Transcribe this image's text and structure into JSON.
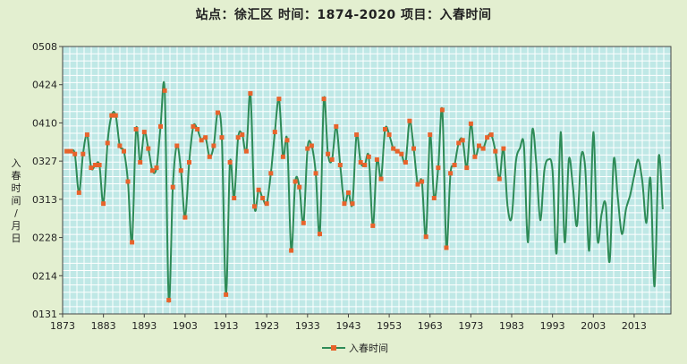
{
  "chart_data": {
    "type": "line",
    "title": "站点：徐汇区   时间：1874-2020      项目：入春时间",
    "ylabel": "入春时间 / 月日",
    "xlabel": "",
    "x_ticks": [
      "1873",
      "1883",
      "1893",
      "1903",
      "1913",
      "1923",
      "1933",
      "1943",
      "1953",
      "1963",
      "1973",
      "1983",
      "1993",
      "2003",
      "2013"
    ],
    "y_ticks": [
      "0131",
      "0214",
      "0228",
      "0313",
      "0327",
      "0410",
      "0424",
      "0508"
    ],
    "xlim": [
      1873,
      2022
    ],
    "ylim": [
      0,
      97
    ],
    "y_axis_note": "y = days after Jan 31",
    "grid": true,
    "legend": "bottom-center",
    "series": [
      {
        "name": "入春时间",
        "color": "#2e8b57",
        "marker_color": "#e8632b",
        "markers_until_year": 1981,
        "x": [
          1874,
          1875,
          1876,
          1877,
          1878,
          1879,
          1880,
          1881,
          1882,
          1883,
          1884,
          1885,
          1886,
          1887,
          1888,
          1889,
          1890,
          1891,
          1892,
          1893,
          1894,
          1895,
          1896,
          1897,
          1898,
          1899,
          1900,
          1901,
          1902,
          1903,
          1904,
          1905,
          1906,
          1907,
          1908,
          1909,
          1910,
          1911,
          1912,
          1913,
          1914,
          1915,
          1916,
          1917,
          1918,
          1919,
          1920,
          1921,
          1922,
          1923,
          1924,
          1925,
          1926,
          1927,
          1928,
          1929,
          1930,
          1931,
          1932,
          1933,
          1934,
          1935,
          1936,
          1937,
          1938,
          1939,
          1940,
          1941,
          1942,
          1943,
          1944,
          1945,
          1946,
          1947,
          1948,
          1949,
          1950,
          1951,
          1952,
          1953,
          1954,
          1955,
          1956,
          1957,
          1958,
          1959,
          1960,
          1961,
          1962,
          1963,
          1964,
          1965,
          1966,
          1967,
          1968,
          1969,
          1970,
          1971,
          1972,
          1973,
          1974,
          1975,
          1976,
          1977,
          1978,
          1979,
          1980,
          1981,
          1982,
          1983,
          1984,
          1985,
          1986,
          1987,
          1988,
          1989,
          1990,
          1991,
          1992,
          1993,
          1994,
          1995,
          1996,
          1997,
          1998,
          1999,
          2000,
          2001,
          2002,
          2003,
          2004,
          2005,
          2006,
          2007,
          2008,
          2009,
          2010,
          2011,
          2012,
          2013,
          2014,
          2015,
          2016,
          2017,
          2018,
          2019,
          2020
        ],
        "values": [
          59,
          59,
          58,
          44,
          58,
          65,
          53,
          54,
          54,
          40,
          62,
          72,
          72,
          61,
          59,
          48,
          26,
          67,
          55,
          66,
          60,
          52,
          53,
          68,
          81,
          5,
          46,
          61,
          52,
          35,
          55,
          68,
          67,
          63,
          64,
          57,
          61,
          73,
          64,
          7,
          55,
          42,
          64,
          65,
          59,
          80,
          39,
          45,
          42,
          40,
          51,
          66,
          78,
          57,
          63,
          23,
          48,
          46,
          33,
          60,
          61,
          51,
          29,
          78,
          58,
          56,
          68,
          54,
          40,
          44,
          40,
          65,
          55,
          54,
          57,
          32,
          56,
          49,
          67,
          65,
          60,
          59,
          58,
          55,
          70,
          60,
          47,
          48,
          28,
          65,
          42,
          53,
          74,
          24,
          51,
          54,
          62,
          63,
          53,
          69,
          57,
          61,
          60,
          64,
          65,
          59,
          49,
          60,
          39,
          35,
          55,
          60,
          61,
          26,
          66,
          55,
          34,
          52,
          56,
          52,
          22,
          66,
          26,
          56,
          46,
          32,
          57,
          53,
          23,
          66,
          27,
          36,
          40,
          19,
          56,
          42,
          29,
          38,
          43,
          50,
          56,
          48,
          33,
          49,
          10,
          57,
          38
        ]
      }
    ]
  }
}
